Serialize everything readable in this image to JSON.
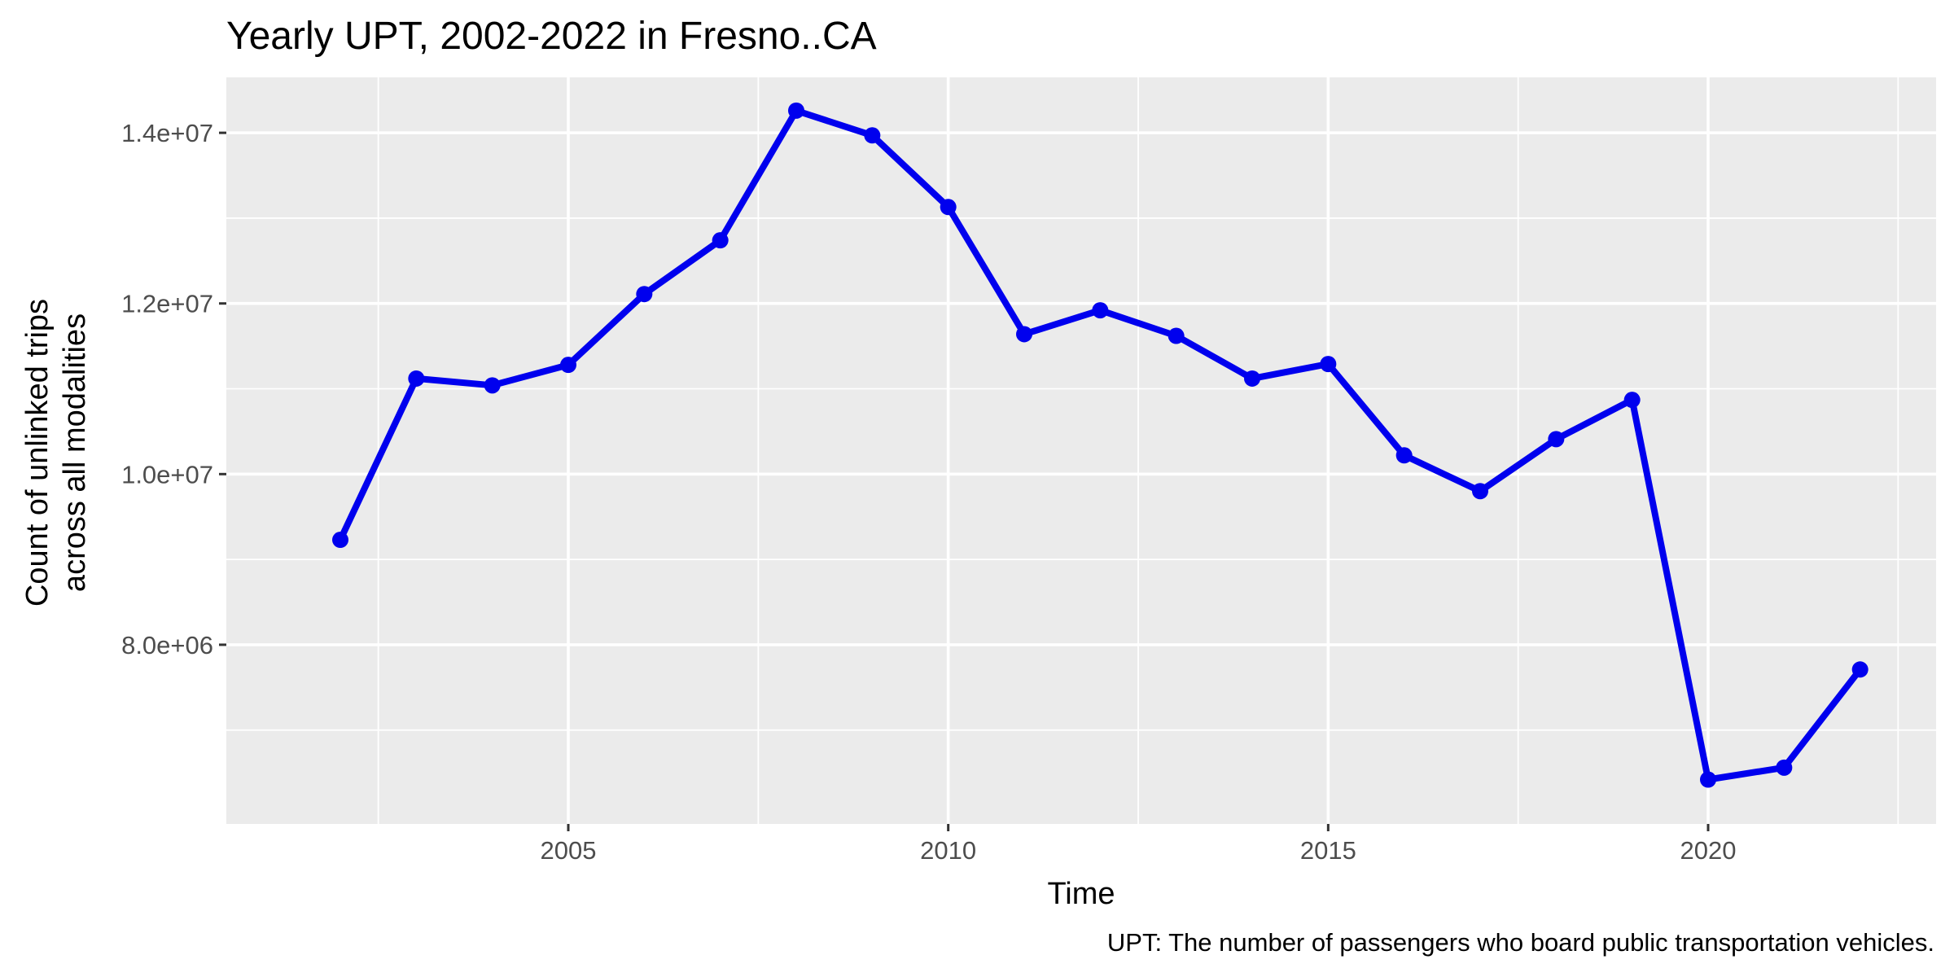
{
  "chart_data": {
    "type": "line",
    "title": "Yearly UPT, 2002-2022 in Fresno..CA",
    "xlabel": "Time",
    "ylabel_lines": [
      "Count of unlinked trips",
      "across all modalities"
    ],
    "caption": "UPT: The number of passengers who board public transportation vehicles.",
    "x": [
      2002,
      2003,
      2004,
      2005,
      2006,
      2007,
      2008,
      2009,
      2010,
      2011,
      2012,
      2013,
      2014,
      2015,
      2016,
      2017,
      2018,
      2019,
      2020,
      2021,
      2022
    ],
    "series": [
      {
        "values": [
          9230000,
          11120000,
          11040000,
          11280000,
          12110000,
          12740000,
          14260000,
          13970000,
          13130000,
          11640000,
          11920000,
          11620000,
          11120000,
          11290000,
          10220000,
          9800000,
          10410000,
          10870000,
          6420000,
          6560000,
          7710000
        ]
      }
    ],
    "xlim": [
      2000.5,
      2023.0
    ],
    "ylim": [
      5900000,
      14650000
    ],
    "x_ticks": [
      2005,
      2010,
      2015,
      2020
    ],
    "x_tick_labels": [
      "2005",
      "2010",
      "2015",
      "2020"
    ],
    "x_minor_ticks": [
      2002.5,
      2007.5,
      2012.5,
      2017.5,
      2022.5
    ],
    "y_ticks": [
      8000000,
      10000000,
      12000000,
      14000000
    ],
    "y_tick_labels": [
      "8.0e+06",
      "1.0e+07",
      "1.2e+07",
      "1.4e+07"
    ],
    "y_minor_ticks": [
      7000000,
      9000000,
      11000000,
      13000000
    ],
    "grid": true,
    "colors": {
      "line": "#0000ee",
      "panel": "#ebebeb",
      "grid": "#ffffff"
    }
  }
}
